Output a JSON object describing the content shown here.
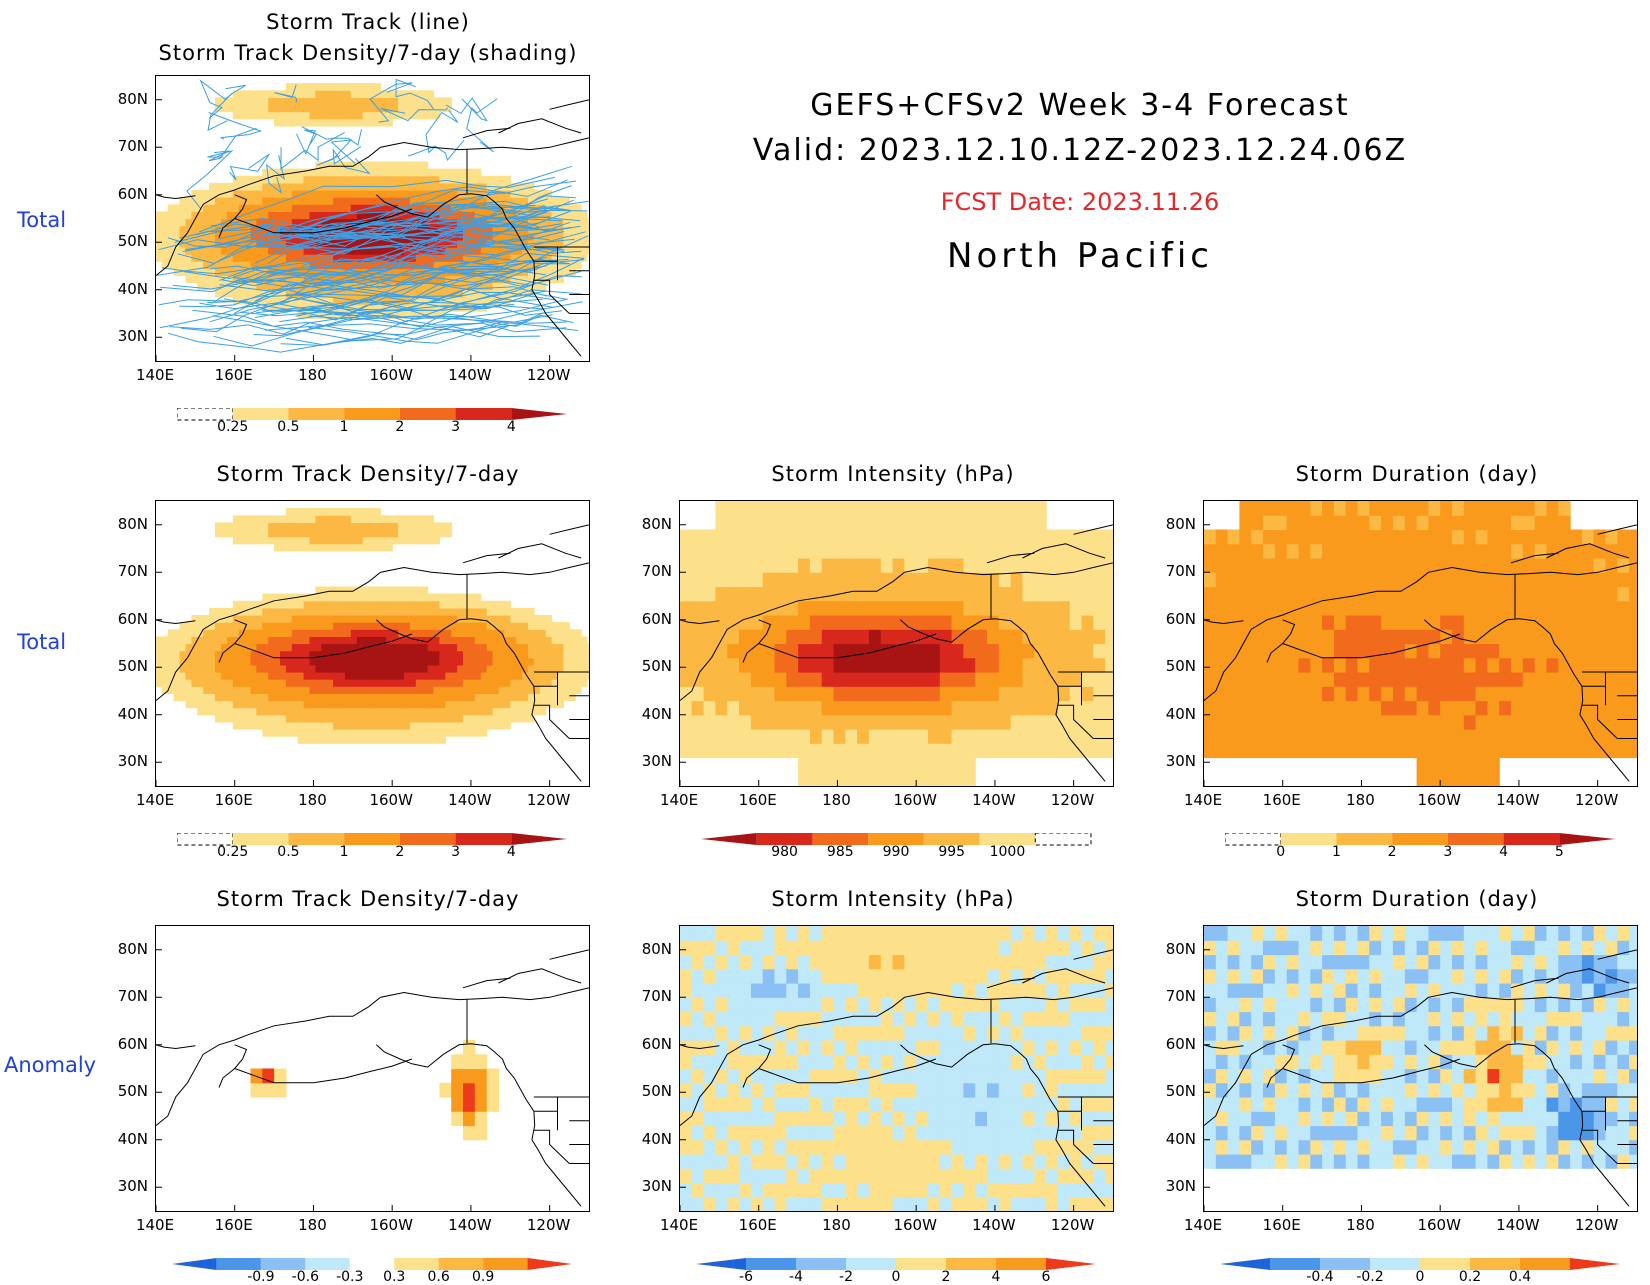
{
  "header": {
    "line1": "GEFS+CFSv2 Week 3-4 Forecast",
    "line2": "Valid: 2023.12.10.12Z-2023.12.24.06Z",
    "fcst_date": "FCST Date: 2023.11.26",
    "region": "North Pacific",
    "fcst_color": "#e8262a"
  },
  "row_labels": {
    "row1": "Total",
    "row2": "Total",
    "row3": "Anomaly"
  },
  "axes": {
    "lat_labels": [
      "80N",
      "70N",
      "60N",
      "50N",
      "40N",
      "30N"
    ],
    "lon_labels": [
      "140E",
      "160E",
      "180",
      "160W",
      "140W",
      "120W"
    ]
  },
  "panels": [
    {
      "id": "p0",
      "title1": "Storm Track (line)",
      "title2": "Storm Track Density/7-day (shading)",
      "variable": "density",
      "mode": "total",
      "tracks": true,
      "colorbar": {
        "labels": [
          "0.25",
          "0.5",
          "1",
          "2",
          "3",
          "4"
        ],
        "colors": [
          "#fff5b8",
          "#fde08a",
          "#fbb842",
          "#f99a1c",
          "#f26a1c",
          "#d8281e",
          "#a81414"
        ],
        "low_dash": true,
        "high_arrow": true
      }
    },
    {
      "id": "p1",
      "title1": "Storm Track Density/7-day",
      "variable": "density",
      "mode": "total",
      "colorbar": {
        "labels": [
          "0.25",
          "0.5",
          "1",
          "2",
          "3",
          "4"
        ],
        "colors": [
          "#fff5b8",
          "#fde08a",
          "#fbb842",
          "#f99a1c",
          "#f26a1c",
          "#d8281e",
          "#a81414"
        ],
        "low_dash": true,
        "high_arrow": true
      }
    },
    {
      "id": "p2",
      "title1": "Storm Intensity (hPa)",
      "variable": "intensity",
      "mode": "total",
      "colorbar": {
        "labels": [
          "980",
          "985",
          "990",
          "995",
          "1000"
        ],
        "colors": [
          "#a81414",
          "#d8281e",
          "#f26a1c",
          "#f99a1c",
          "#fbb842",
          "#fde08a",
          "#fff5b8"
        ],
        "low_arrow": true,
        "high_dash": true
      }
    },
    {
      "id": "p3",
      "title1": "Storm Duration (day)",
      "variable": "duration",
      "mode": "total",
      "colorbar": {
        "labels": [
          "0",
          "1",
          "2",
          "3",
          "4",
          "5"
        ],
        "colors": [
          "#fff5b8",
          "#fde08a",
          "#fbb842",
          "#f99a1c",
          "#f26a1c",
          "#d8281e",
          "#a81414"
        ],
        "low_dash": true,
        "high_arrow": true
      }
    },
    {
      "id": "p4",
      "title1": "Storm Track Density/7-day",
      "variable": "density",
      "mode": "anomaly",
      "colorbar": {
        "labels": [
          "-0.9",
          "-0.6",
          "-0.3",
          "0.3",
          "0.6",
          "0.9"
        ],
        "colors": [
          "#1e64d8",
          "#4c96ea",
          "#8ac0f4",
          "#bfe8f8",
          "#ffffff",
          "#fde08a",
          "#fbb842",
          "#f99a1c",
          "#ec3a1a"
        ],
        "low_arrow": true,
        "high_arrow": true
      }
    },
    {
      "id": "p5",
      "title1": "Storm Intensity (hPa)",
      "variable": "intensity",
      "mode": "anomaly",
      "colorbar": {
        "labels": [
          "-6",
          "-4",
          "-2",
          "0",
          "2",
          "4",
          "6"
        ],
        "colors": [
          "#1e64d8",
          "#4c96ea",
          "#8ac0f4",
          "#bfe8f8",
          "#fde08a",
          "#fbb842",
          "#f99a1c",
          "#ec3a1a"
        ],
        "low_arrow": true,
        "high_arrow": true
      }
    },
    {
      "id": "p6",
      "title1": "Storm Duration (day)",
      "variable": "duration",
      "mode": "anomaly",
      "colorbar": {
        "labels": [
          "-0.4",
          "-0.2",
          "0",
          "0.2",
          "0.4"
        ],
        "colors": [
          "#1e64d8",
          "#4c96ea",
          "#8ac0f4",
          "#bfe8f8",
          "#fde08a",
          "#fbb842",
          "#f99a1c",
          "#ec3a1a"
        ],
        "low_arrow": true,
        "high_arrow": true
      }
    }
  ]
}
